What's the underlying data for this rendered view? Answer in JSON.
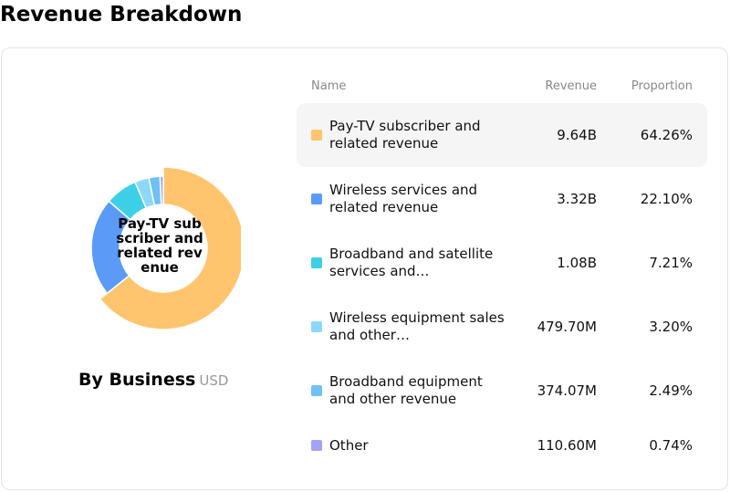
{
  "page": {
    "title": "Revenue Breakdown"
  },
  "panel": {
    "label": "By Business",
    "unit": "USD"
  },
  "table": {
    "headers": {
      "name": "Name",
      "revenue": "Revenue",
      "proportion": "Proportion"
    }
  },
  "chart_data": {
    "type": "pie",
    "center_label": "Pay-TV subscriber and related revenue",
    "highlighted_index": 0,
    "slices": [
      {
        "name": "Pay-TV subscriber and related revenue",
        "name_display": "Pay-TV subscriber and related revenue",
        "revenue": "9.64B",
        "proportion": "64.26%",
        "value": 64.26,
        "color": "#FFC46E"
      },
      {
        "name": "Wireless services and related revenue",
        "name_display": "Wireless services and related revenue",
        "revenue": "3.32B",
        "proportion": "22.10%",
        "value": 22.1,
        "color": "#5B9BF7"
      },
      {
        "name": "Broadband and satellite services and related revenue",
        "name_display": "Broadband and satellite services and…",
        "revenue": "1.08B",
        "proportion": "7.21%",
        "value": 7.21,
        "color": "#3DCFE6"
      },
      {
        "name": "Wireless equipment sales and other revenue",
        "name_display": "Wireless equipment sales and other…",
        "revenue": "479.70M",
        "proportion": "3.20%",
        "value": 3.2,
        "color": "#8DD8FA"
      },
      {
        "name": "Broadband equipment and other revenue",
        "name_display": "Broadband equipment and other revenue",
        "revenue": "374.07M",
        "proportion": "2.49%",
        "value": 2.49,
        "color": "#6EC1F5"
      },
      {
        "name": "Other",
        "name_display": "Other",
        "revenue": "110.60M",
        "proportion": "0.74%",
        "value": 0.74,
        "color": "#A3A3F5"
      }
    ]
  }
}
